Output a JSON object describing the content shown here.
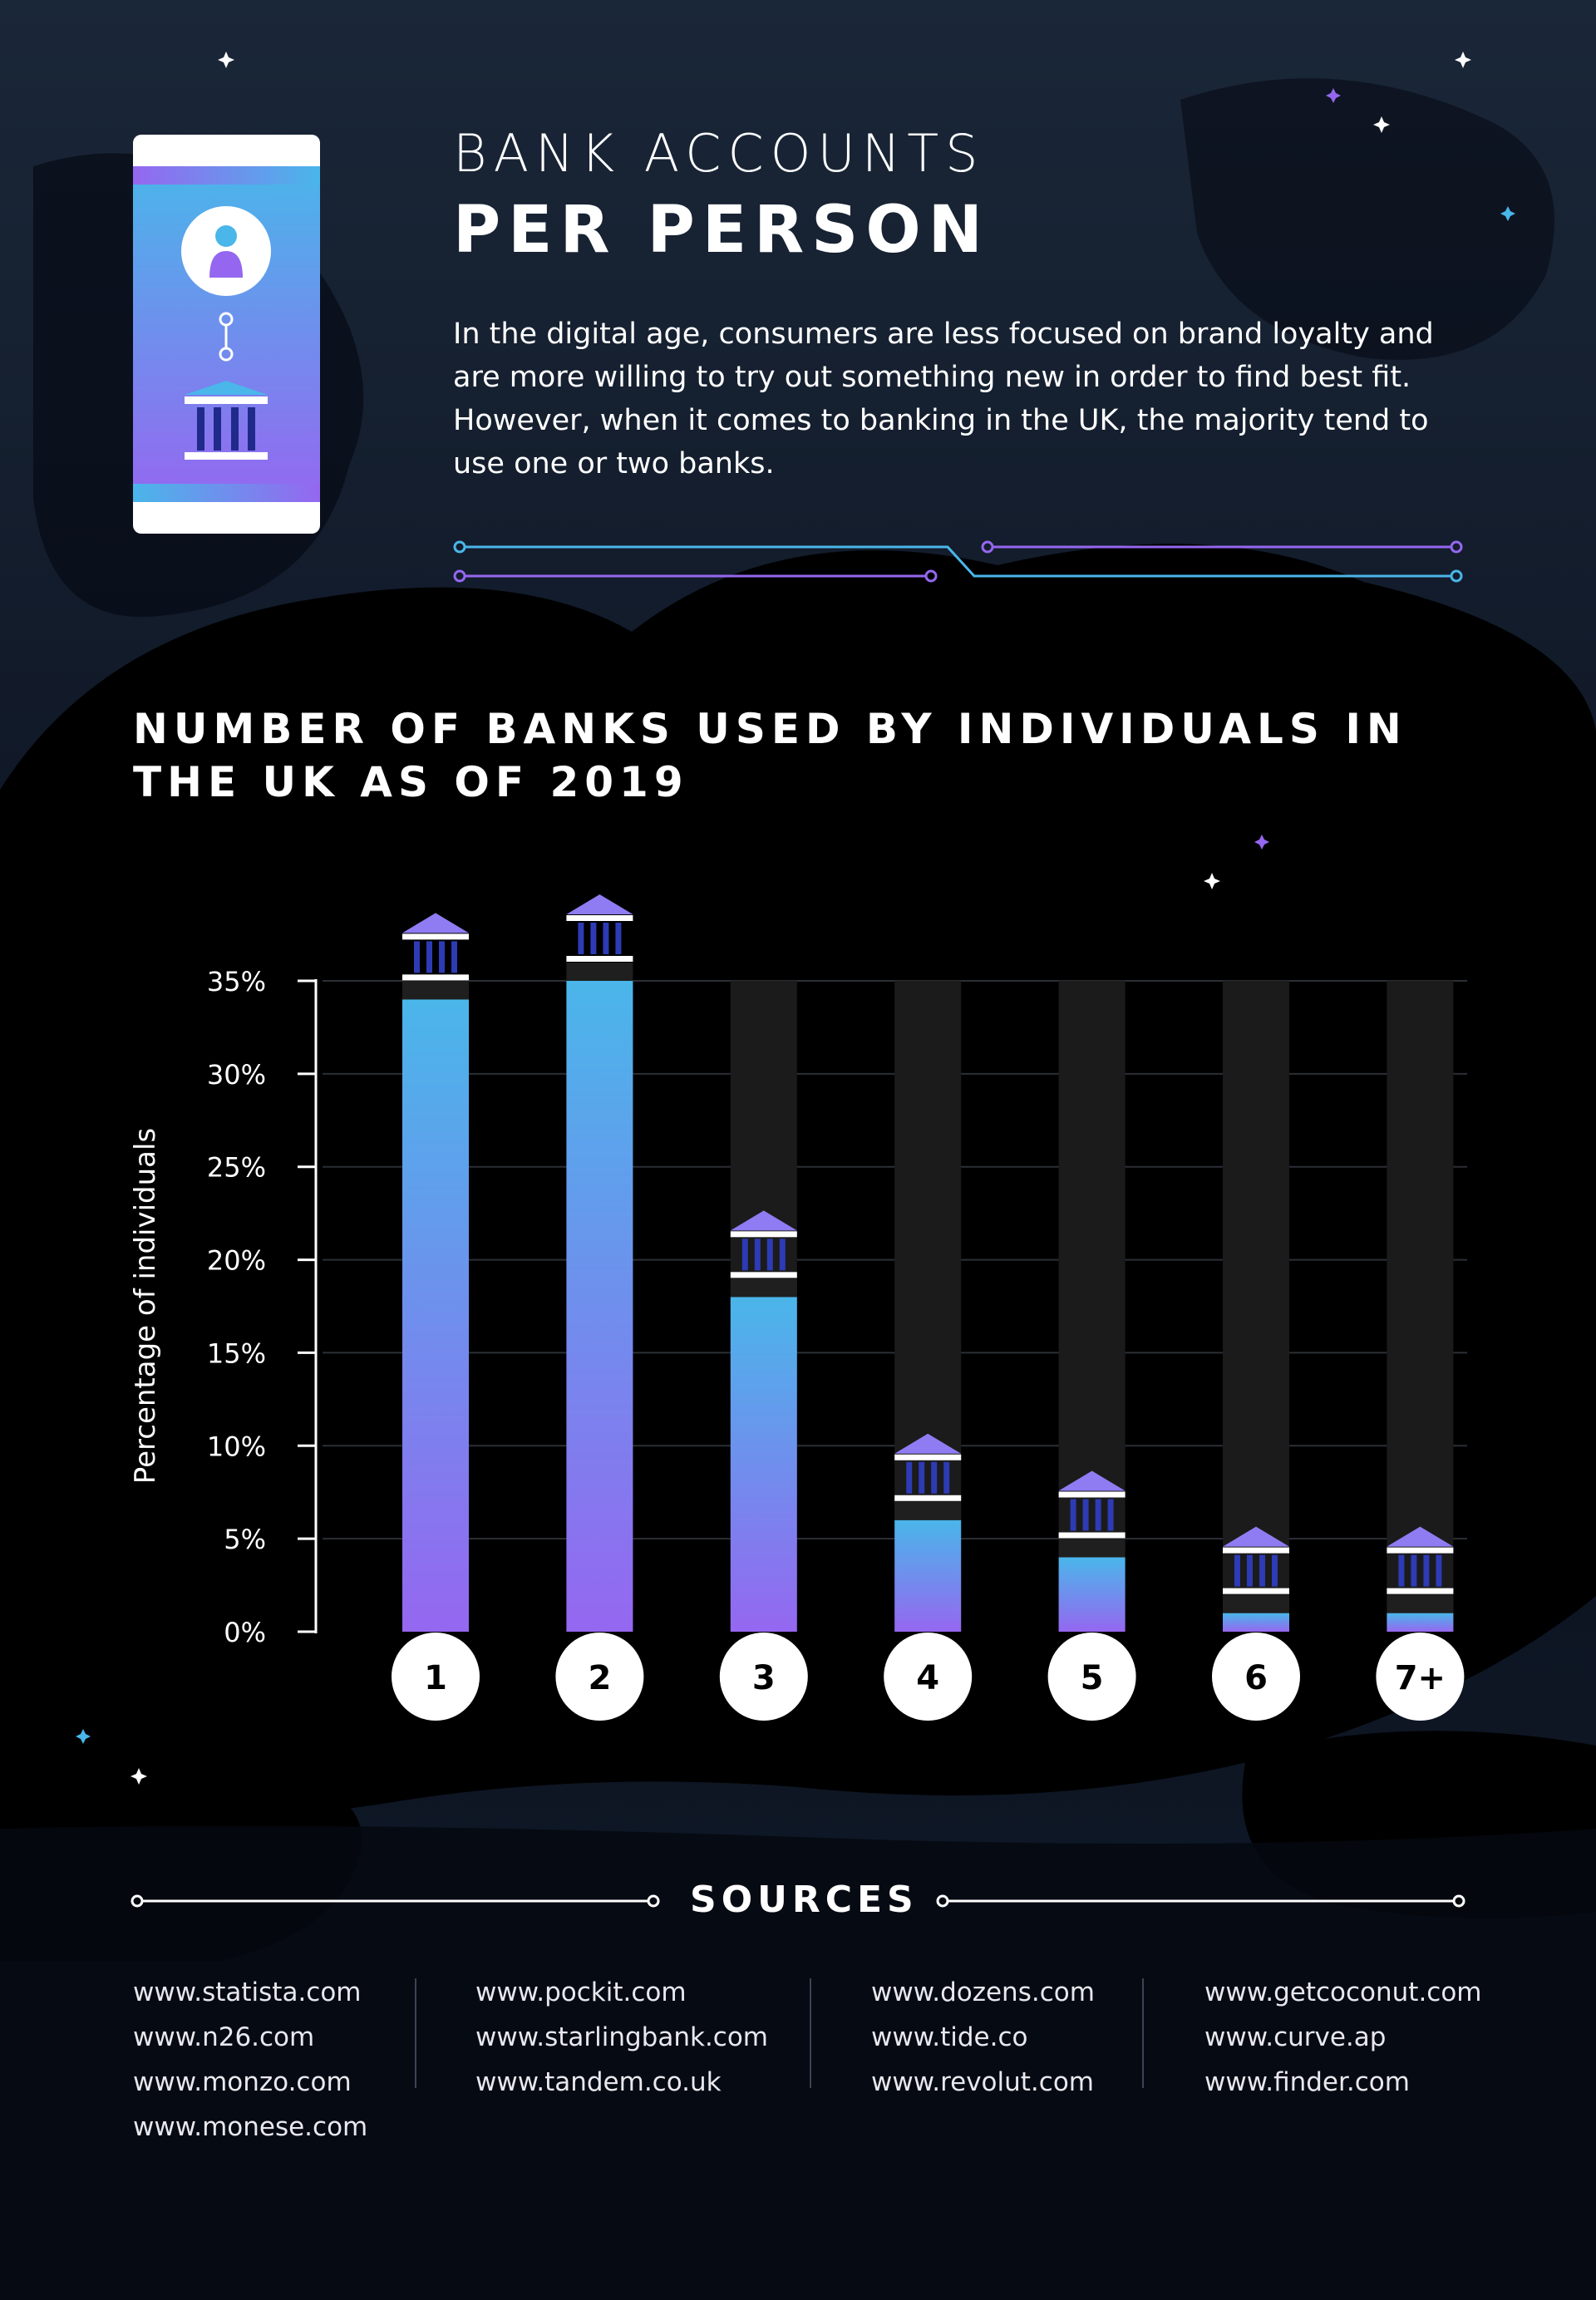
{
  "header": {
    "title_line1": "BANK ACCOUNTS",
    "title_line2": "PER PERSON",
    "intro": "In the digital age, consumers are less focused on brand loyalty and are more willing to try out something new in order to find best fit. However, when it comes to banking in the UK, the majority tend to use one or two banks."
  },
  "colors": {
    "background": "#0e1624",
    "blob": "#000000",
    "bar_top": "#4ab6ea",
    "bar_bottom": "#9567f0",
    "track": "#1b1b1b",
    "accent_blue": "#4ab6ea",
    "accent_purple": "#9567f0"
  },
  "chart_data": {
    "type": "bar",
    "title": "NUMBER OF BANKS USED BY INDIVIDUALS IN THE UK AS OF 2019",
    "ylabel": "Percentage of individuals",
    "xlabel": "",
    "categories": [
      "1",
      "2",
      "3",
      "4",
      "5",
      "6",
      "7+"
    ],
    "values": [
      34,
      35,
      18,
      6,
      4,
      1,
      1
    ],
    "ylim": [
      0,
      35
    ],
    "yticks": [
      "0%",
      "5%",
      "10%",
      "15%",
      "20%",
      "25%",
      "30%",
      "35%"
    ],
    "grid": true,
    "legend": "none"
  },
  "sources": {
    "title": "SOURCES",
    "columns": [
      [
        "www.statista.com",
        "www.n26.com",
        "www.monzo.com",
        "www.monese.com"
      ],
      [
        "www.pockit.com",
        "www.starlingbank.com",
        "www.tandem.co.uk"
      ],
      [
        "www.dozens.com",
        "www.tide.co",
        "www.revolut.com"
      ],
      [
        "www.getcoconut.com",
        "www.curve.ap",
        "www.finder.com"
      ]
    ]
  },
  "icons": {
    "phone": "phone-icon",
    "user": "user-icon",
    "bank": "bank-icon",
    "star": "star-icon"
  }
}
